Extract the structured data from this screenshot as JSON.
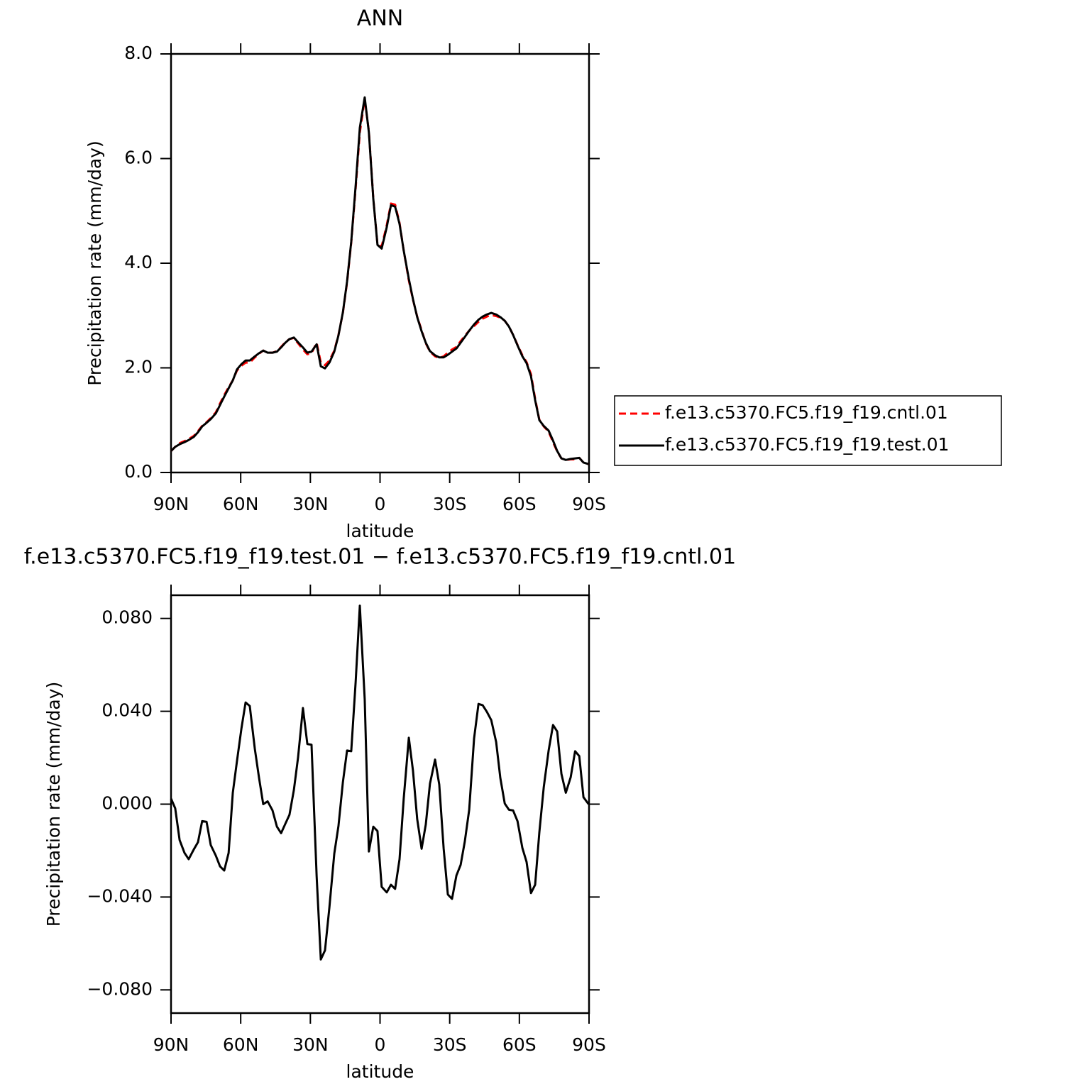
{
  "chart_data": [
    {
      "type": "line",
      "title": "ANN",
      "xlabel": "latitude",
      "ylabel": "Precipitation rate (mm/day)",
      "x": [
        90,
        88.2,
        86.3,
        84.2,
        82.4,
        80.2,
        78.4,
        76.6,
        74.7,
        72.9,
        70.7,
        68.9,
        67.1,
        65.2,
        63.4,
        61.6,
        59.7,
        57.9,
        56.1,
        53.9,
        52.1,
        50.3,
        48.4,
        46.3,
        44.4,
        42.6,
        40.8,
        39.0,
        37.1,
        35.3,
        33.2,
        31.3,
        29.5,
        27.3,
        25.5,
        23.7,
        21.8,
        19.7,
        17.9,
        16.0,
        14.2,
        12.4,
        10.5,
        8.7,
        6.6,
        4.8,
        2.9,
        1.1,
        -0.7,
        -2.9,
        -4.7,
        -6.5,
        -8.4,
        -10.2,
        -12.4,
        -14.2,
        -16.0,
        -17.9,
        -19.7,
        -21.5,
        -23.7,
        -25.5,
        -27.4,
        -29.2,
        -31.0,
        -32.9,
        -34.7,
        -36.5,
        -38.4,
        -40.5,
        -42.4,
        -44.2,
        -46.0,
        -47.9,
        -50.0,
        -51.8,
        -53.7,
        -55.5,
        -57.3,
        -59.2,
        -61.3,
        -63.1,
        -65.0,
        -66.8,
        -68.6,
        -70.5,
        -72.6,
        -74.5,
        -76.3,
        -78.1,
        -80.0,
        -82.1,
        -84.0,
        -85.8,
        -87.6,
        -89.8
      ],
      "xlim": [
        90,
        -90
      ],
      "xticks": [
        {
          "value": 90,
          "label": "90N"
        },
        {
          "value": 60,
          "label": "60N"
        },
        {
          "value": 30,
          "label": "30N"
        },
        0,
        {
          "value": -30,
          "label": "30S"
        },
        {
          "value": -60,
          "label": "60S"
        },
        {
          "value": -90,
          "label": "90S"
        }
      ],
      "ylim": [
        0,
        8
      ],
      "yticks": [
        {
          "value": 0,
          "label": "0.0"
        },
        {
          "value": 2,
          "label": "2.0"
        },
        {
          "value": 4,
          "label": "4.0"
        },
        {
          "value": 6,
          "label": "6.0"
        },
        {
          "value": 8,
          "label": "8.0"
        }
      ],
      "legend": "right",
      "series": [
        {
          "name": "f.e13.c5370.FC5.f19_f19.cntl.01",
          "color": "#ff0000",
          "dash": "dashed",
          "values": [
            0.41,
            0.49,
            0.56,
            0.6,
            0.64,
            0.7,
            0.79,
            0.89,
            0.96,
            1.04,
            1.15,
            1.32,
            1.48,
            1.63,
            1.76,
            1.95,
            2.04,
            2.1,
            2.1,
            2.2,
            2.27,
            2.33,
            2.29,
            2.29,
            2.32,
            2.4,
            2.49,
            2.55,
            2.57,
            2.47,
            2.35,
            2.26,
            2.28,
            2.48,
            2.1,
            2.05,
            2.14,
            2.33,
            2.63,
            3.05,
            3.63,
            4.39,
            5.43,
            6.5,
            7.13,
            6.52,
            5.24,
            4.36,
            4.32,
            4.73,
            5.14,
            5.12,
            4.77,
            4.24,
            3.67,
            3.3,
            2.98,
            2.72,
            2.47,
            2.31,
            2.22,
            2.19,
            2.22,
            2.29,
            2.35,
            2.4,
            2.51,
            2.61,
            2.71,
            2.8,
            2.88,
            2.94,
            2.98,
            3.01,
            2.99,
            2.96,
            2.9,
            2.79,
            2.63,
            2.44,
            2.24,
            2.11,
            1.88,
            1.41,
            1.01,
            0.88,
            0.78,
            0.58,
            0.4,
            0.27,
            0.24,
            0.25,
            0.25,
            0.28,
            0.19,
            0.16
          ]
        },
        {
          "name": "f.e13.c5370.FC5.f19_f19.test.01",
          "color": "#000000",
          "dash": "solid",
          "values": [
            0.41,
            0.49,
            0.54,
            0.58,
            0.62,
            0.68,
            0.77,
            0.88,
            0.95,
            1.02,
            1.13,
            1.29,
            1.45,
            1.61,
            1.76,
            1.97,
            2.07,
            2.14,
            2.14,
            2.22,
            2.28,
            2.33,
            2.29,
            2.29,
            2.31,
            2.39,
            2.48,
            2.55,
            2.58,
            2.49,
            2.39,
            2.29,
            2.31,
            2.45,
            2.03,
            1.99,
            2.1,
            2.31,
            2.62,
            3.06,
            3.65,
            4.41,
            5.48,
            6.59,
            7.17,
            6.5,
            5.23,
            4.35,
            4.28,
            4.69,
            5.11,
            5.08,
            4.75,
            4.24,
            3.7,
            3.31,
            2.97,
            2.7,
            2.48,
            2.32,
            2.24,
            2.2,
            2.2,
            2.25,
            2.31,
            2.37,
            2.48,
            2.59,
            2.71,
            2.83,
            2.92,
            2.98,
            3.02,
            3.05,
            3.02,
            2.97,
            2.9,
            2.79,
            2.63,
            2.43,
            2.22,
            2.09,
            1.84,
            1.38,
            1.0,
            0.89,
            0.8,
            0.61,
            0.41,
            0.27,
            0.24,
            0.26,
            0.27,
            0.28,
            0.19,
            0.16
          ]
        }
      ]
    },
    {
      "type": "line",
      "title": "f.e13.c5370.FC5.f19_f19.test.01 − f.e13.c5370.FC5.f19_f19.cntl.01",
      "xlabel": "latitude",
      "ylabel": "Precipitation rate (mm/day)",
      "x": [
        90,
        88.2,
        86.3,
        84.2,
        82.4,
        80.2,
        78.4,
        76.6,
        74.7,
        72.9,
        70.7,
        68.9,
        67.1,
        65.2,
        63.4,
        61.6,
        59.7,
        57.9,
        56.1,
        53.9,
        52.1,
        50.3,
        48.4,
        46.3,
        44.4,
        42.6,
        40.8,
        39.0,
        37.1,
        35.3,
        33.2,
        31.3,
        29.5,
        27.3,
        25.5,
        23.7,
        21.8,
        19.7,
        17.9,
        16.0,
        14.2,
        12.4,
        10.5,
        8.7,
        6.6,
        4.8,
        2.9,
        1.1,
        -0.7,
        -2.9,
        -4.7,
        -6.5,
        -8.4,
        -10.2,
        -12.4,
        -14.2,
        -16.0,
        -17.9,
        -19.7,
        -21.5,
        -23.7,
        -25.5,
        -27.4,
        -29.2,
        -31.0,
        -32.9,
        -34.7,
        -36.5,
        -38.4,
        -40.5,
        -42.4,
        -44.2,
        -46.0,
        -47.9,
        -50.0,
        -51.8,
        -53.7,
        -55.5,
        -57.3,
        -59.2,
        -61.3,
        -63.1,
        -65.0,
        -66.8,
        -68.6,
        -70.5,
        -72.6,
        -74.5,
        -76.3,
        -78.1,
        -80.0,
        -82.1,
        -84.0,
        -85.8,
        -87.6,
        -89.8
      ],
      "xlim": [
        90,
        -90
      ],
      "xticks": [
        {
          "value": 90,
          "label": "90N"
        },
        {
          "value": 60,
          "label": "60N"
        },
        {
          "value": 30,
          "label": "30N"
        },
        0,
        {
          "value": -30,
          "label": "30S"
        },
        {
          "value": -60,
          "label": "60S"
        },
        {
          "value": -90,
          "label": "90S"
        }
      ],
      "ylim": [
        -0.09,
        0.09
      ],
      "yticks": [
        {
          "value": -0.08,
          "label": "−0.080"
        },
        {
          "value": -0.04,
          "label": "−0.040"
        },
        {
          "value": 0,
          "label": "0.000"
        },
        {
          "value": 0.04,
          "label": "0.040"
        },
        {
          "value": 0.08,
          "label": "0.080"
        }
      ],
      "series": [
        {
          "color": "#000000",
          "dash": "solid",
          "values": [
            0.0024,
            -0.0018,
            -0.0155,
            -0.021,
            -0.0237,
            -0.0195,
            -0.0164,
            -0.0073,
            -0.0076,
            -0.0176,
            -0.0222,
            -0.0268,
            -0.0286,
            -0.021,
            0.0049,
            0.0186,
            0.0325,
            0.0438,
            0.0423,
            0.0237,
            0.0113,
            0.0,
            0.0012,
            -0.0027,
            -0.0097,
            -0.0125,
            -0.0085,
            -0.0046,
            0.0061,
            0.0201,
            0.0414,
            0.0259,
            0.0256,
            -0.031,
            -0.0669,
            -0.063,
            -0.0444,
            -0.0213,
            -0.0094,
            0.0094,
            0.0231,
            0.0228,
            0.0526,
            0.0855,
            0.0453,
            -0.0204,
            -0.0097,
            -0.0116,
            -0.0356,
            -0.038,
            -0.0347,
            -0.0365,
            -0.0237,
            0.0024,
            0.0286,
            0.0143,
            -0.0064,
            -0.0192,
            -0.0088,
            0.0088,
            0.0192,
            0.0085,
            -0.0192,
            -0.0389,
            -0.0408,
            -0.0307,
            -0.0262,
            -0.0161,
            -0.0024,
            0.0283,
            0.0432,
            0.0426,
            0.0398,
            0.0362,
            0.0268,
            0.0113,
            0.0003,
            -0.0024,
            -0.0027,
            -0.0073,
            -0.0189,
            -0.0249,
            -0.0383,
            -0.0347,
            -0.0122,
            0.0073,
            0.0231,
            0.0341,
            0.0313,
            0.0131,
            0.0049,
            0.0116,
            0.0228,
            0.0207,
            0.003,
            0.0
          ]
        }
      ]
    }
  ]
}
